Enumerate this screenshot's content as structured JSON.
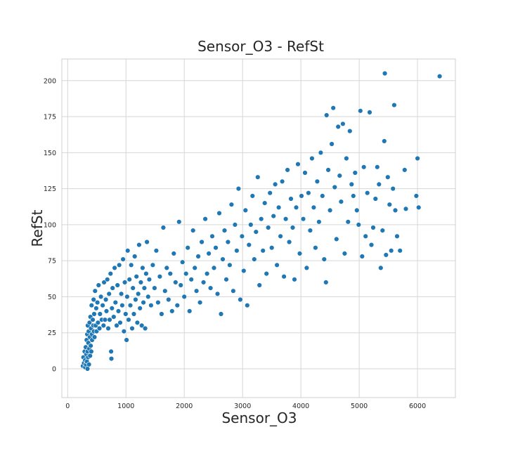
{
  "chart_data": {
    "type": "scatter",
    "title": "Sensor_O3 - RefSt",
    "xlabel": "Sensor_O3",
    "ylabel": "RefSt",
    "xlim": [
      -100,
      6650
    ],
    "ylim": [
      -20,
      215
    ],
    "xticks": [
      0,
      1000,
      2000,
      3000,
      4000,
      5000,
      6000
    ],
    "yticks": [
      0,
      25,
      50,
      75,
      100,
      125,
      150,
      175,
      200
    ],
    "grid": true,
    "legend": "none",
    "colors": {
      "point": "#1f77b4",
      "grid": "#d6d6d6",
      "frame": "#cfcfcf",
      "background": "#ffffff"
    },
    "series": [
      {
        "points": [
          [
            260,
            2
          ],
          [
            270,
            8
          ],
          [
            280,
            4
          ],
          [
            290,
            12
          ],
          [
            300,
            1
          ],
          [
            300,
            6
          ],
          [
            310,
            15
          ],
          [
            315,
            3
          ],
          [
            320,
            10
          ],
          [
            325,
            20
          ],
          [
            330,
            5
          ],
          [
            335,
            24
          ],
          [
            340,
            12
          ],
          [
            340,
            0
          ],
          [
            345,
            30
          ],
          [
            350,
            8
          ],
          [
            355,
            18
          ],
          [
            360,
            26
          ],
          [
            365,
            3
          ],
          [
            370,
            14
          ],
          [
            375,
            32
          ],
          [
            380,
            22
          ],
          [
            385,
            9
          ],
          [
            390,
            36
          ],
          [
            395,
            16
          ],
          [
            400,
            28
          ],
          [
            405,
            12
          ],
          [
            410,
            44
          ],
          [
            415,
            24
          ],
          [
            420,
            20
          ],
          [
            430,
            34
          ],
          [
            440,
            30
          ],
          [
            445,
            48
          ],
          [
            450,
            26
          ],
          [
            455,
            38
          ],
          [
            460,
            22
          ],
          [
            470,
            54
          ],
          [
            480,
            30
          ],
          [
            490,
            42
          ],
          [
            495,
            26
          ],
          [
            510,
            46
          ],
          [
            520,
            32
          ],
          [
            530,
            58
          ],
          [
            545,
            28
          ],
          [
            555,
            38
          ],
          [
            570,
            50
          ],
          [
            585,
            34
          ],
          [
            600,
            44
          ],
          [
            615,
            30
          ],
          [
            625,
            60
          ],
          [
            640,
            34
          ],
          [
            655,
            48
          ],
          [
            665,
            40
          ],
          [
            680,
            62
          ],
          [
            695,
            28
          ],
          [
            710,
            52
          ],
          [
            720,
            34
          ],
          [
            735,
            66
          ],
          [
            745,
            12
          ],
          [
            750,
            7
          ],
          [
            760,
            42
          ],
          [
            770,
            56
          ],
          [
            790,
            36
          ],
          [
            805,
            70
          ],
          [
            820,
            46
          ],
          [
            840,
            30
          ],
          [
            855,
            58
          ],
          [
            870,
            40
          ],
          [
            885,
            72
          ],
          [
            900,
            32
          ],
          [
            920,
            52
          ],
          [
            935,
            44
          ],
          [
            950,
            76
          ],
          [
            965,
            26
          ],
          [
            980,
            60
          ],
          [
            995,
            38
          ],
          [
            1010,
            20
          ],
          [
            1020,
            50
          ],
          [
            1030,
            82
          ],
          [
            1045,
            34
          ],
          [
            1060,
            62
          ],
          [
            1075,
            44
          ],
          [
            1090,
            72
          ],
          [
            1105,
            28
          ],
          [
            1120,
            56
          ],
          [
            1135,
            38
          ],
          [
            1150,
            78
          ],
          [
            1165,
            48
          ],
          [
            1180,
            64
          ],
          [
            1195,
            32
          ],
          [
            1210,
            52
          ],
          [
            1225,
            86
          ],
          [
            1240,
            42
          ],
          [
            1255,
            60
          ],
          [
            1270,
            30
          ],
          [
            1285,
            70
          ],
          [
            1300,
            46
          ],
          [
            1315,
            56
          ],
          [
            1330,
            28
          ],
          [
            1345,
            66
          ],
          [
            1360,
            88
          ],
          [
            1380,
            50
          ],
          [
            1400,
            62
          ],
          [
            1430,
            44
          ],
          [
            1460,
            72
          ],
          [
            1490,
            56
          ],
          [
            1520,
            82
          ],
          [
            1550,
            46
          ],
          [
            1580,
            64
          ],
          [
            1610,
            38
          ],
          [
            1640,
            98
          ],
          [
            1670,
            54
          ],
          [
            1700,
            70
          ],
          [
            1730,
            48
          ],
          [
            1760,
            66
          ],
          [
            1790,
            40
          ],
          [
            1820,
            80
          ],
          [
            1850,
            60
          ],
          [
            1880,
            44
          ],
          [
            1910,
            102
          ],
          [
            1940,
            58
          ],
          [
            1970,
            74
          ],
          [
            2000,
            50
          ],
          [
            2030,
            66
          ],
          [
            2060,
            84
          ],
          [
            2090,
            40
          ],
          [
            2120,
            62
          ],
          [
            2150,
            96
          ],
          [
            2180,
            70
          ],
          [
            2210,
            54
          ],
          [
            2240,
            78
          ],
          [
            2270,
            46
          ],
          [
            2300,
            88
          ],
          [
            2330,
            60
          ],
          [
            2360,
            104
          ],
          [
            2390,
            66
          ],
          [
            2420,
            80
          ],
          [
            2450,
            56
          ],
          [
            2480,
            92
          ],
          [
            2510,
            70
          ],
          [
            2540,
            84
          ],
          [
            2570,
            52
          ],
          [
            2600,
            108
          ],
          [
            2630,
            38
          ],
          [
            2660,
            76
          ],
          [
            2690,
            96
          ],
          [
            2720,
            62
          ],
          [
            2750,
            88
          ],
          [
            2780,
            72
          ],
          [
            2810,
            114
          ],
          [
            2840,
            54
          ],
          [
            2870,
            100
          ],
          [
            2900,
            82
          ],
          [
            2930,
            125
          ],
          [
            2960,
            48
          ],
          [
            2990,
            92
          ],
          [
            3020,
            68
          ],
          [
            3050,
            110
          ],
          [
            3080,
            44
          ],
          [
            3110,
            86
          ],
          [
            3140,
            100
          ],
          [
            3170,
            120
          ],
          [
            3200,
            76
          ],
          [
            3230,
            95
          ],
          [
            3260,
            133
          ],
          [
            3290,
            58
          ],
          [
            3320,
            104
          ],
          [
            3350,
            82
          ],
          [
            3380,
            115
          ],
          [
            3410,
            66
          ],
          [
            3440,
            98
          ],
          [
            3470,
            122
          ],
          [
            3500,
            84
          ],
          [
            3530,
            106
          ],
          [
            3560,
            128
          ],
          [
            3590,
            72
          ],
          [
            3620,
            112
          ],
          [
            3650,
            92
          ],
          [
            3680,
            130
          ],
          [
            3710,
            64
          ],
          [
            3740,
            104
          ],
          [
            3770,
            138
          ],
          [
            3800,
            88
          ],
          [
            3830,
            118
          ],
          [
            3860,
            98
          ],
          [
            3890,
            62
          ],
          [
            3920,
            112
          ],
          [
            3950,
            142
          ],
          [
            3980,
            80
          ],
          [
            4010,
            120
          ],
          [
            4040,
            104
          ],
          [
            4070,
            136
          ],
          [
            4100,
            70
          ],
          [
            4130,
            122
          ],
          [
            4160,
            96
          ],
          [
            4190,
            146
          ],
          [
            4220,
            112
          ],
          [
            4250,
            84
          ],
          [
            4280,
            130
          ],
          [
            4310,
            102
          ],
          [
            4340,
            150
          ],
          [
            4370,
            120
          ],
          [
            4400,
            76
          ],
          [
            4430,
            60
          ],
          [
            4440,
            176
          ],
          [
            4470,
            138
          ],
          [
            4500,
            110
          ],
          [
            4530,
            156
          ],
          [
            4555,
            181
          ],
          [
            4580,
            126
          ],
          [
            4610,
            90
          ],
          [
            4640,
            168
          ],
          [
            4665,
            134
          ],
          [
            4690,
            116
          ],
          [
            4720,
            170
          ],
          [
            4750,
            80
          ],
          [
            4780,
            146
          ],
          [
            4810,
            102
          ],
          [
            4840,
            165
          ],
          [
            4870,
            128
          ],
          [
            4900,
            120
          ],
          [
            4930,
            136
          ],
          [
            4960,
            110
          ],
          [
            4990,
            100
          ],
          [
            5020,
            179
          ],
          [
            5050,
            78
          ],
          [
            5080,
            140
          ],
          [
            5110,
            92
          ],
          [
            5140,
            122
          ],
          [
            5180,
            178
          ],
          [
            5210,
            86
          ],
          [
            5240,
            98
          ],
          [
            5280,
            118
          ],
          [
            5310,
            140
          ],
          [
            5340,
            128
          ],
          [
            5370,
            70
          ],
          [
            5400,
            96
          ],
          [
            5430,
            158
          ],
          [
            5440,
            205
          ],
          [
            5460,
            79
          ],
          [
            5490,
            133
          ],
          [
            5520,
            114
          ],
          [
            5550,
            82
          ],
          [
            5580,
            125
          ],
          [
            5600,
            183
          ],
          [
            5620,
            110
          ],
          [
            5650,
            92
          ],
          [
            5700,
            82
          ],
          [
            5780,
            138
          ],
          [
            5800,
            111
          ],
          [
            5980,
            120
          ],
          [
            6000,
            146
          ],
          [
            6020,
            112
          ],
          [
            6380,
            203
          ]
        ]
      }
    ]
  }
}
